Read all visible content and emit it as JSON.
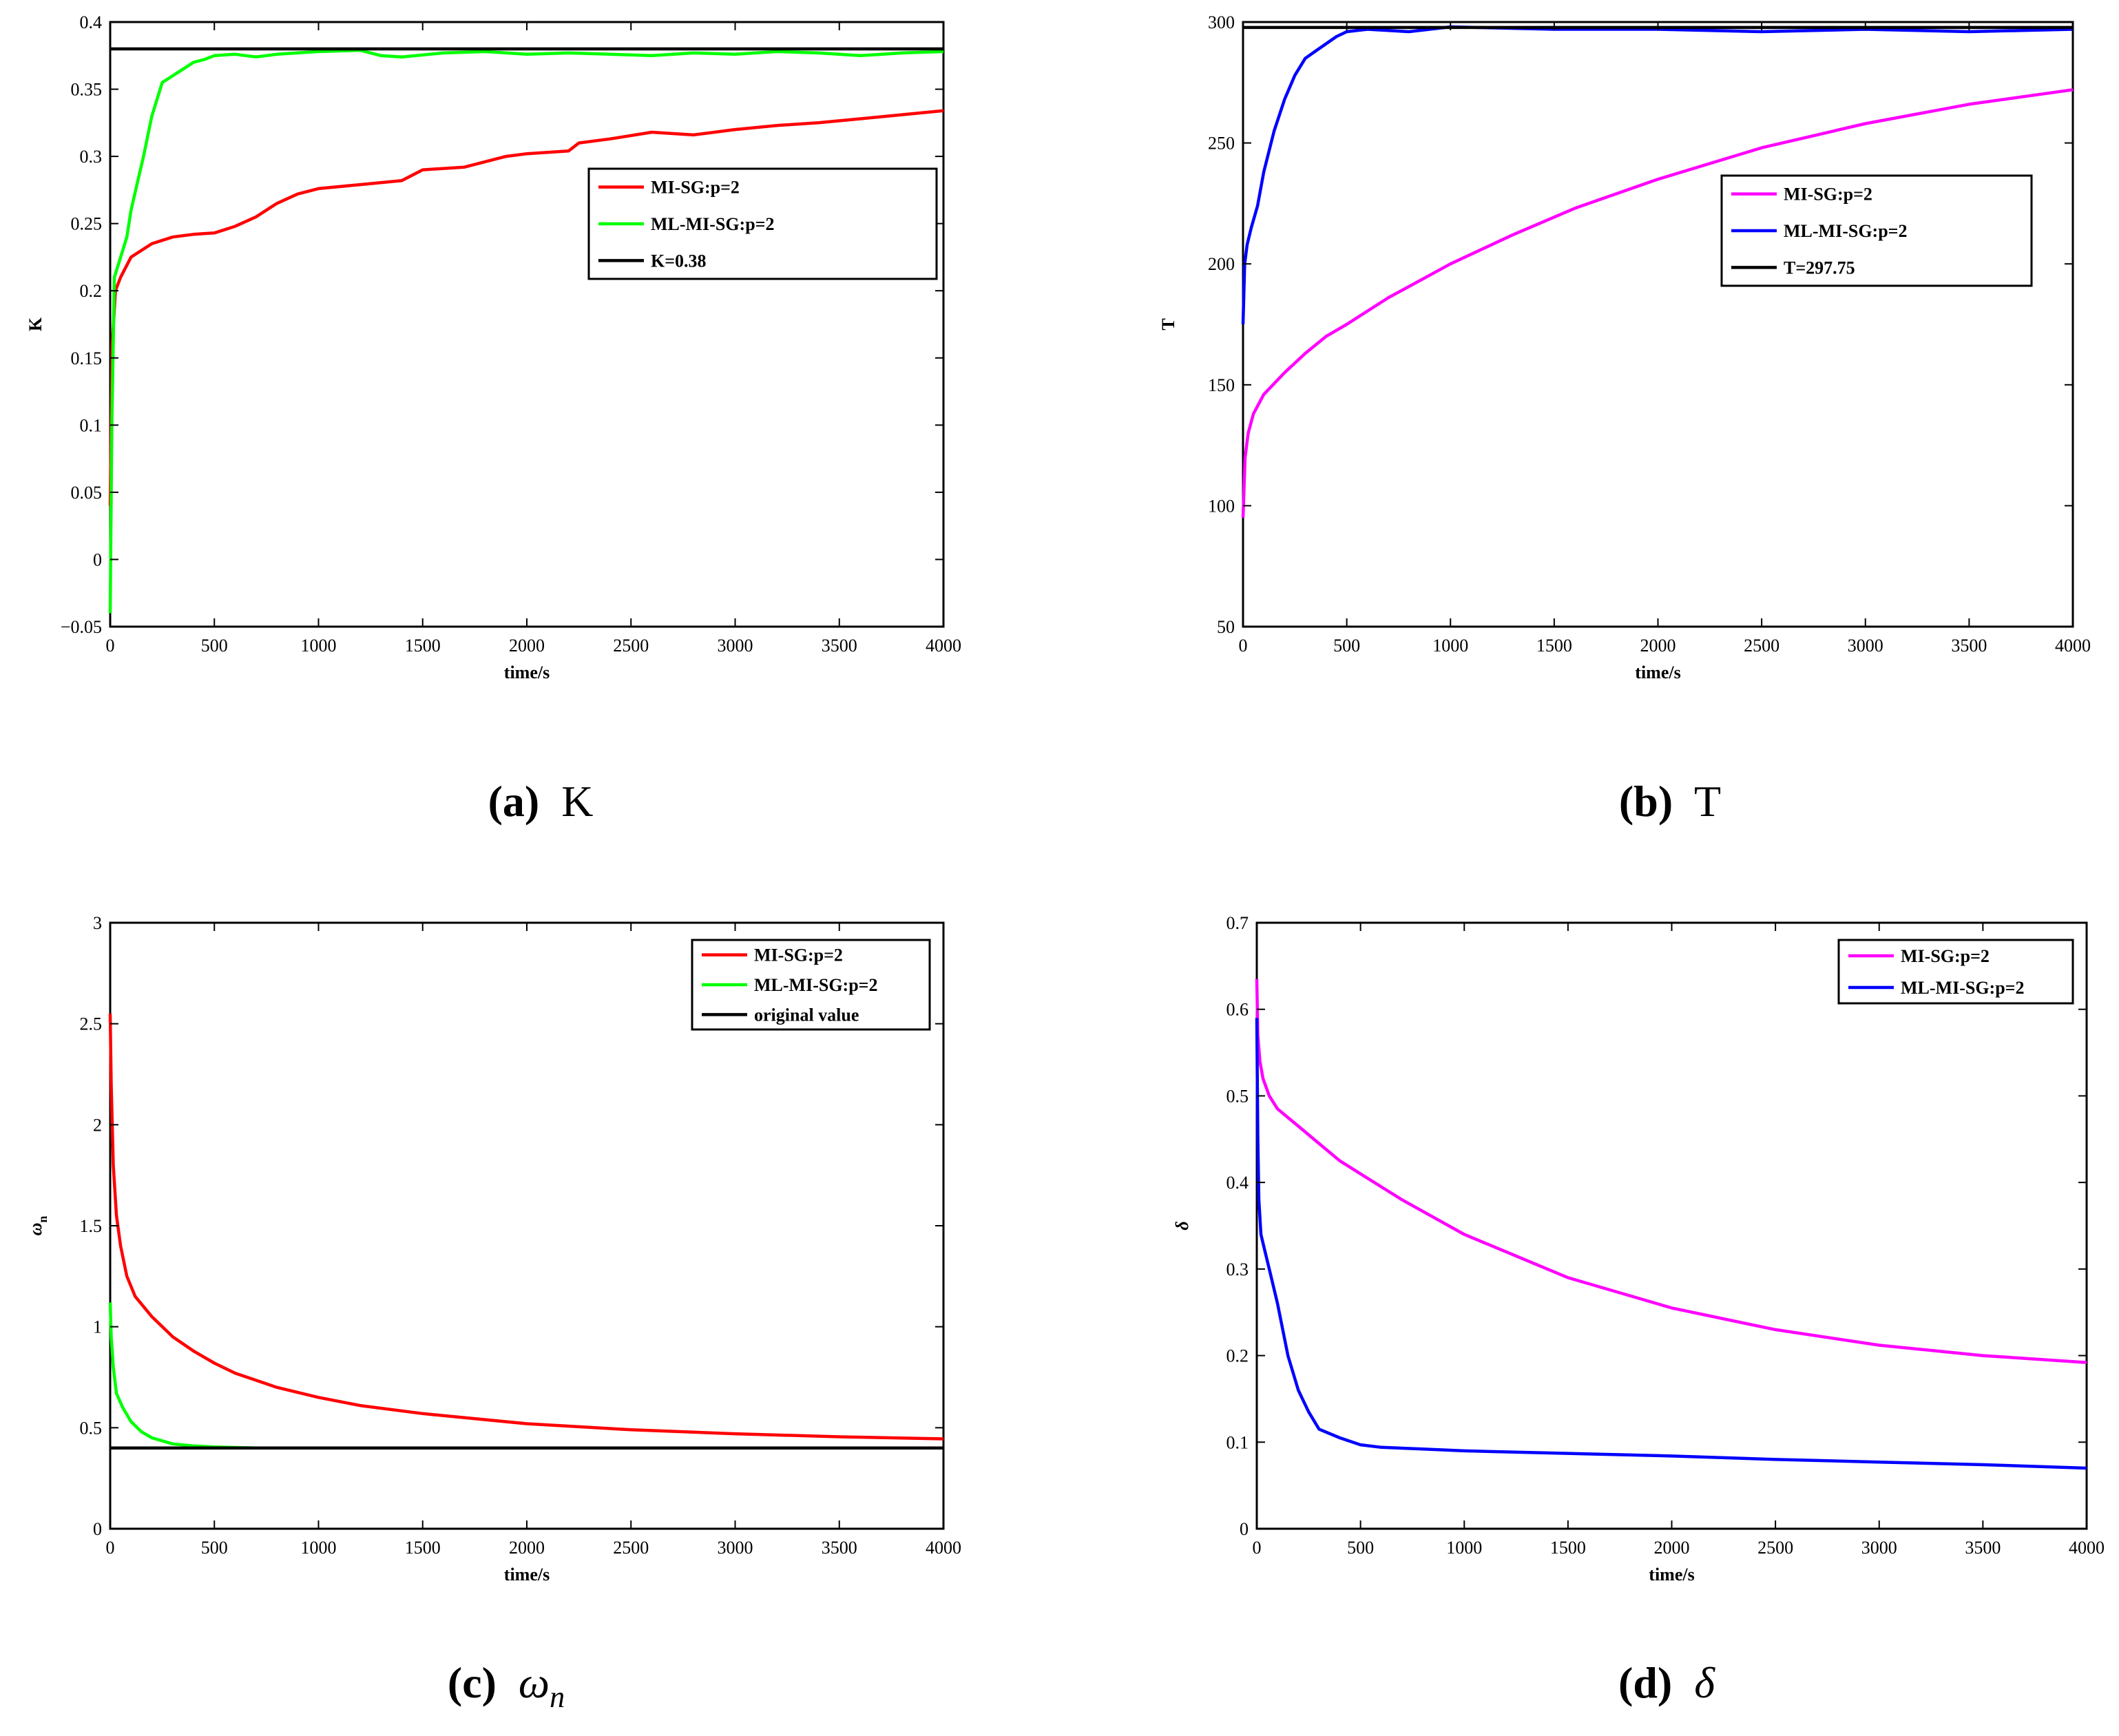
{
  "chart_data": [
    {
      "id": "a",
      "type": "line",
      "caption": {
        "letter": "(a)",
        "symbol": "K"
      },
      "xlabel": "time/s",
      "ylabel": "K",
      "xlim": [
        0,
        4000
      ],
      "ylim": [
        -0.05,
        0.4
      ],
      "xticks": [
        0,
        500,
        1000,
        1500,
        2000,
        2500,
        3000,
        3500,
        4000
      ],
      "yticks": [
        -0.05,
        0,
        0.05,
        0.1,
        0.15,
        0.2,
        0.25,
        0.3,
        0.35,
        0.4
      ],
      "ytick_labels": [
        "−0.05",
        "0",
        "0.05",
        "0.1",
        "0.15",
        "0.2",
        "0.25",
        "0.3",
        "0.35",
        "0.4"
      ],
      "legend_position": "upper-right",
      "series": [
        {
          "name": "MI-SG:p=2",
          "color": "#ff0000",
          "x": [
            0,
            10,
            25,
            50,
            100,
            200,
            300,
            400,
            500,
            600,
            700,
            800,
            900,
            1000,
            1200,
            1400,
            1500,
            1700,
            1900,
            2000,
            2200,
            2250,
            2400,
            2600,
            2800,
            3000,
            3200,
            3400,
            3600,
            3800,
            4000
          ],
          "y": [
            0.04,
            0.16,
            0.2,
            0.21,
            0.225,
            0.235,
            0.24,
            0.242,
            0.243,
            0.248,
            0.255,
            0.265,
            0.272,
            0.276,
            0.279,
            0.282,
            0.29,
            0.292,
            0.3,
            0.302,
            0.304,
            0.31,
            0.313,
            0.318,
            0.316,
            0.32,
            0.323,
            0.325,
            0.328,
            0.331,
            0.334
          ]
        },
        {
          "name": "ML-MI-SG:p=2",
          "color": "#00ff00",
          "x": [
            0,
            8,
            20,
            40,
            60,
            80,
            100,
            130,
            160,
            200,
            250,
            300,
            350,
            400,
            450,
            500,
            600,
            700,
            800,
            1000,
            1200,
            1300,
            1400,
            1600,
            1800,
            2000,
            2200,
            2400,
            2600,
            2800,
            3000,
            3200,
            3400,
            3600,
            3800,
            4000
          ],
          "y": [
            -0.04,
            0.1,
            0.21,
            0.22,
            0.23,
            0.24,
            0.26,
            0.28,
            0.3,
            0.33,
            0.355,
            0.36,
            0.365,
            0.37,
            0.372,
            0.375,
            0.376,
            0.374,
            0.376,
            0.378,
            0.379,
            0.375,
            0.374,
            0.377,
            0.378,
            0.376,
            0.377,
            0.376,
            0.375,
            0.377,
            0.376,
            0.378,
            0.377,
            0.375,
            0.377,
            0.378
          ]
        },
        {
          "name": "K=0.38",
          "color": "#000000",
          "x": [
            0,
            4000
          ],
          "y": [
            0.38,
            0.38
          ]
        }
      ]
    },
    {
      "id": "b",
      "type": "line",
      "caption": {
        "letter": "(b)",
        "symbol": "T"
      },
      "xlabel": "time/s",
      "ylabel": "T",
      "xlim": [
        0,
        4000
      ],
      "ylim": [
        50,
        300
      ],
      "xticks": [
        0,
        500,
        1000,
        1500,
        2000,
        2500,
        3000,
        3500,
        4000
      ],
      "yticks": [
        50,
        100,
        150,
        200,
        250,
        300
      ],
      "ytick_labels": [
        "50",
        "100",
        "150",
        "200",
        "250",
        "300"
      ],
      "legend_position": "right",
      "series": [
        {
          "name": "MI-SG:p=2",
          "color": "#ff00ff",
          "x": [
            0,
            10,
            25,
            50,
            100,
            200,
            300,
            400,
            500,
            700,
            1000,
            1300,
            1600,
            2000,
            2500,
            3000,
            3500,
            4000
          ],
          "y": [
            95,
            120,
            130,
            138,
            146,
            155,
            163,
            170,
            175,
            186,
            200,
            212,
            223,
            235,
            248,
            258,
            266,
            272
          ]
        },
        {
          "name": "ML-MI-SG:p=2",
          "color": "#0000ff",
          "x": [
            0,
            8,
            20,
            40,
            70,
            100,
            150,
            200,
            250,
            300,
            350,
            400,
            450,
            500,
            600,
            800,
            1000,
            1500,
            2000,
            2500,
            3000,
            3500,
            4000
          ],
          "y": [
            175,
            200,
            208,
            215,
            224,
            238,
            255,
            268,
            278,
            285,
            288,
            291,
            294,
            296,
            297,
            296,
            298,
            297,
            297,
            296,
            297,
            296,
            297
          ]
        },
        {
          "name": "T=297.75",
          "color": "#000000",
          "x": [
            0,
            4000
          ],
          "y": [
            297.75,
            297.75
          ]
        }
      ]
    },
    {
      "id": "c",
      "type": "line",
      "caption": {
        "letter": "(c)",
        "symbol": "ω",
        "sub": "n"
      },
      "xlabel": "time/s",
      "ylabel": "ω",
      "ylabel_sub": "n",
      "xlim": [
        0,
        4000
      ],
      "ylim": [
        0,
        3
      ],
      "xticks": [
        0,
        500,
        1000,
        1500,
        2000,
        2500,
        3000,
        3500,
        4000
      ],
      "yticks": [
        0,
        0.5,
        1,
        1.5,
        2,
        2.5,
        3
      ],
      "ytick_labels": [
        "0",
        "0.5",
        "1",
        "1.5",
        "2",
        "2.5",
        "3"
      ],
      "legend_position": "top-right",
      "series": [
        {
          "name": "MI-SG:p=2",
          "color": "#ff0000",
          "x": [
            0,
            5,
            15,
            30,
            50,
            80,
            120,
            200,
            300,
            400,
            500,
            600,
            800,
            1000,
            1200,
            1500,
            2000,
            2500,
            3000,
            3500,
            4000
          ],
          "y": [
            2.55,
            2.2,
            1.8,
            1.55,
            1.4,
            1.25,
            1.15,
            1.05,
            0.95,
            0.88,
            0.82,
            0.77,
            0.7,
            0.65,
            0.61,
            0.57,
            0.52,
            0.49,
            0.47,
            0.455,
            0.445
          ]
        },
        {
          "name": "ML-MI-SG:p=2",
          "color": "#00ff00",
          "x": [
            0,
            5,
            15,
            30,
            60,
            100,
            150,
            200,
            300,
            400,
            500,
            700,
            1000,
            2000,
            3000,
            4000
          ],
          "y": [
            1.12,
            0.95,
            0.8,
            0.67,
            0.6,
            0.53,
            0.48,
            0.45,
            0.42,
            0.41,
            0.405,
            0.4,
            0.4,
            0.4,
            0.4,
            0.4
          ]
        },
        {
          "name": "original value",
          "color": "#000000",
          "x": [
            0,
            4000
          ],
          "y": [
            0.4,
            0.4
          ]
        }
      ]
    },
    {
      "id": "d",
      "type": "line",
      "caption": {
        "letter": "(d)",
        "symbol": "δ"
      },
      "xlabel": "time/s",
      "ylabel": "δ",
      "xlim": [
        0,
        4000
      ],
      "ylim": [
        0,
        0.7
      ],
      "xticks": [
        0,
        500,
        1000,
        1500,
        2000,
        2500,
        3000,
        3500,
        4000
      ],
      "yticks": [
        0,
        0.1,
        0.2,
        0.3,
        0.4,
        0.5,
        0.6,
        0.7
      ],
      "ytick_labels": [
        "0",
        "0.1",
        "0.2",
        "0.3",
        "0.4",
        "0.5",
        "0.6",
        "0.7"
      ],
      "legend_position": "top-right",
      "series": [
        {
          "name": "MI-SG:p=2",
          "color": "#ff00ff",
          "x": [
            0,
            5,
            15,
            30,
            60,
            100,
            150,
            200,
            300,
            400,
            500,
            700,
            1000,
            1500,
            2000,
            2500,
            3000,
            3500,
            4000
          ],
          "y": [
            0.635,
            0.57,
            0.54,
            0.52,
            0.5,
            0.485,
            0.475,
            0.465,
            0.445,
            0.425,
            0.41,
            0.38,
            0.34,
            0.29,
            0.255,
            0.23,
            0.212,
            0.2,
            0.192
          ]
        },
        {
          "name": "ML-MI-SG:p=2",
          "color": "#0000ff",
          "x": [
            0,
            5,
            10,
            20,
            40,
            60,
            100,
            150,
            200,
            250,
            300,
            400,
            500,
            600,
            800,
            1000,
            1500,
            2000,
            2500,
            3000,
            3500,
            4000
          ],
          "y": [
            0.59,
            0.45,
            0.38,
            0.34,
            0.32,
            0.3,
            0.26,
            0.2,
            0.16,
            0.135,
            0.115,
            0.105,
            0.097,
            0.094,
            0.092,
            0.09,
            0.087,
            0.084,
            0.08,
            0.077,
            0.074,
            0.07
          ]
        }
      ]
    }
  ]
}
